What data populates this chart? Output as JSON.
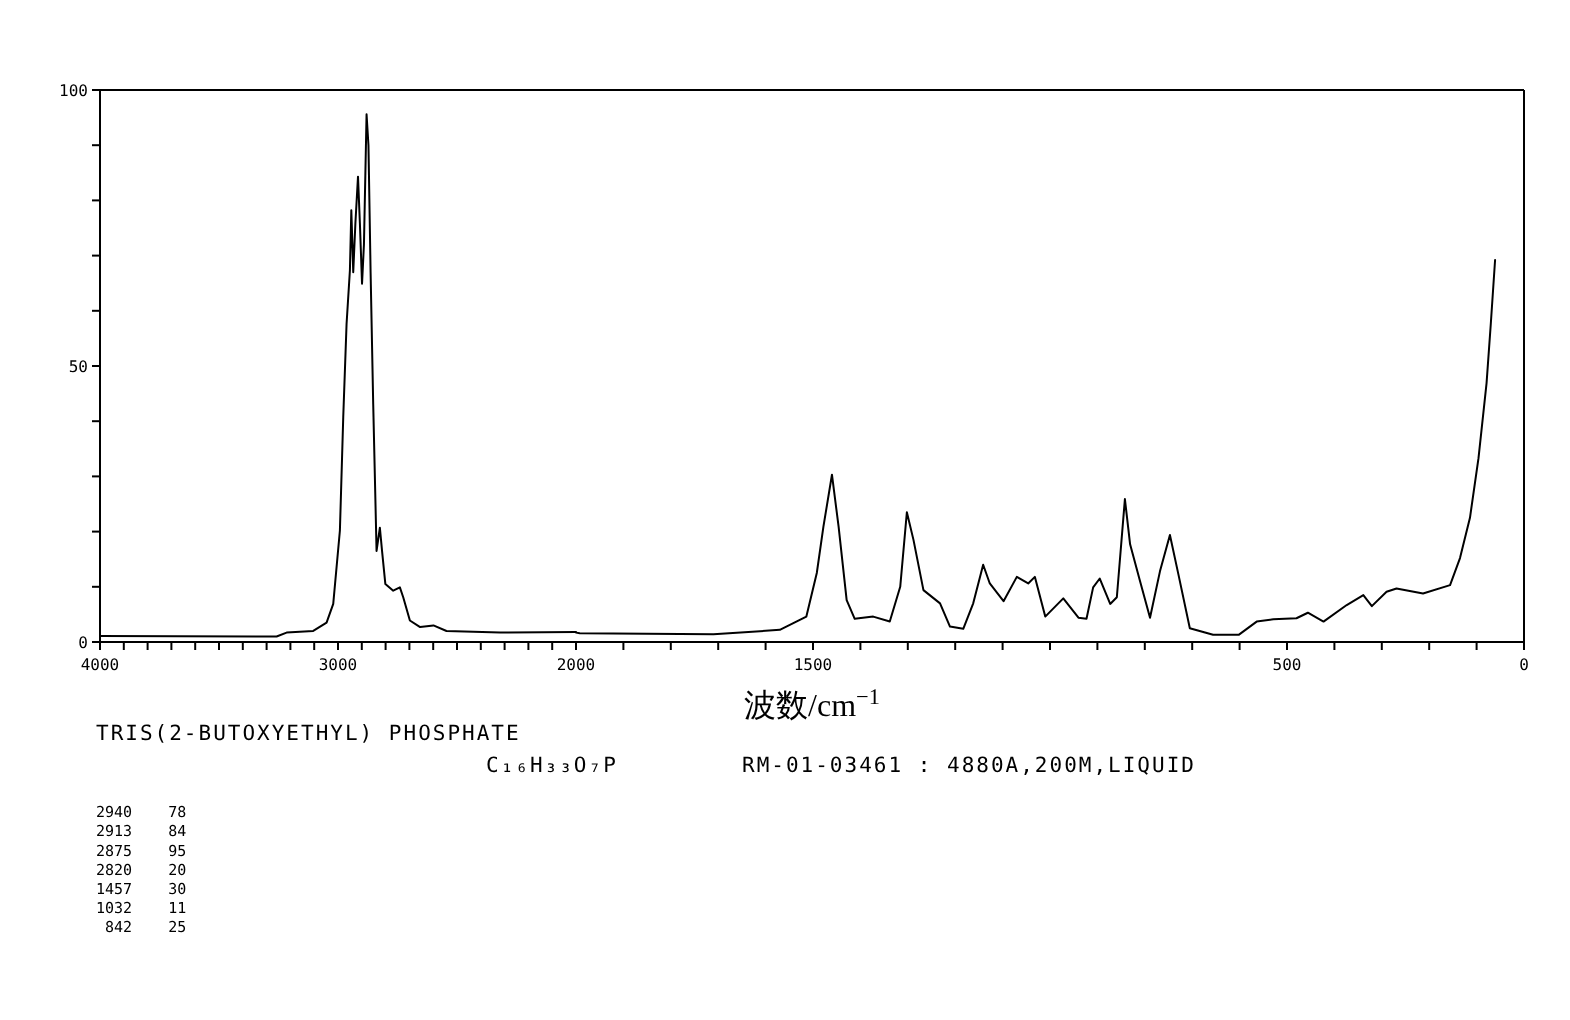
{
  "chart_data": [
    {
      "type": "line",
      "title": "TRIS(2-BUTOXYETHYL) PHOSPHATE",
      "subtitle": "C₁₆H₃₃O₇P",
      "xlabel": "波数/cm$^{−1}$",
      "annotations": [
        "RM-01-03461 : 4880A,200M,LIQUID",
        "2940    78",
        "2913    84",
        "2875    95",
        "2820    20",
        "1457    30",
        "1032    11",
        " 842    25"
      ],
      "xlim": [
        4000,
        2000
      ],
      "ylim": [
        0,
        100
      ],
      "xticks": [
        4000,
        {
          "value": 3900,
          "label": null
        },
        {
          "value": 3800,
          "label": null
        },
        {
          "value": 3700,
          "label": null
        },
        {
          "value": 3600,
          "label": null
        },
        {
          "value": 3500,
          "label": null
        },
        {
          "value": 3400,
          "label": null
        },
        {
          "value": 3300,
          "label": null
        },
        {
          "value": 3200,
          "label": null
        },
        {
          "value": 3100,
          "label": null
        },
        3000,
        {
          "value": 2900,
          "label": null
        },
        {
          "value": 2800,
          "label": null
        },
        {
          "value": 2700,
          "label": null
        },
        {
          "value": 2600,
          "label": null
        },
        {
          "value": 2500,
          "label": null
        },
        {
          "value": 2400,
          "label": null
        },
        {
          "value": 2300,
          "label": null
        },
        {
          "value": 2200,
          "label": null
        },
        {
          "value": 2100,
          "label": null
        },
        2000
      ],
      "yticks": [
        0,
        {
          "value": 10,
          "label": null
        },
        {
          "value": 20,
          "label": null
        },
        {
          "value": 30,
          "label": null
        },
        {
          "value": 40,
          "label": null
        },
        50,
        {
          "value": 60,
          "label": null
        },
        {
          "value": 70,
          "label": null
        },
        {
          "value": 80,
          "label": null
        },
        {
          "value": 90,
          "label": null
        },
        100
      ],
      "series": [
        {
          "color": "#000000",
          "x": [
            4000,
            3258,
            3216,
            3104,
            3048,
            3020,
            2992,
            2978,
            2964,
            2950,
            2944,
            2936,
            2927,
            2916,
            2908,
            2899,
            2891,
            2880,
            2872,
            2863,
            2852,
            2838,
            2824,
            2815,
            2801,
            2768,
            2740,
            2726,
            2698,
            2655,
            2599,
            2544,
            2319,
            2000
          ],
          "values": [
            1.1,
            1.0,
            1.7,
            2.0,
            3.5,
            6.9,
            20.2,
            40.7,
            57.6,
            67.3,
            78.2,
            67,
            75.8,
            84.3,
            75.8,
            64.9,
            72,
            95.6,
            90,
            67,
            43,
            16.5,
            20.7,
            16.5,
            10.5,
            9.3,
            9.9,
            8.1,
            3.9,
            2.7,
            3.0,
            2.0,
            1.7,
            1.8
          ]
        }
      ]
    },
    {
      "type": "line",
      "tick_labels": "x",
      "xlim": [
        2000,
        0
      ],
      "ylim": [
        0,
        100
      ],
      "xticks": [
        {
          "value": 1900,
          "label": null
        },
        {
          "value": 1800,
          "label": null
        },
        {
          "value": 1700,
          "label": null
        },
        {
          "value": 1600,
          "label": null
        },
        1500,
        {
          "value": 1400,
          "label": null
        },
        {
          "value": 1300,
          "label": null
        },
        {
          "value": 1200,
          "label": null
        },
        {
          "value": 1100,
          "label": null
        },
        {
          "value": 1000,
          "label": null
        },
        {
          "value": 900,
          "label": null
        },
        {
          "value": 800,
          "label": null
        },
        {
          "value": 700,
          "label": null
        },
        {
          "value": 600,
          "label": null
        },
        500,
        {
          "value": 400,
          "label": null
        },
        {
          "value": 300,
          "label": null
        },
        {
          "value": 200,
          "label": null
        },
        {
          "value": 100,
          "label": null
        },
        0
      ],
      "series": [
        {
          "color": "#000000",
          "x": [
            2000,
            1992,
            1710,
            1570,
            1514,
            1492,
            1478,
            1460,
            1446,
            1429,
            1412,
            1373,
            1338,
            1316,
            1302,
            1288,
            1267,
            1232,
            1211,
            1183,
            1162,
            1141,
            1127,
            1098,
            1070,
            1046,
            1032,
            1010,
            972,
            940,
            923,
            909,
            895,
            873,
            859,
            842,
            831,
            810,
            789,
            768,
            747,
            729,
            705,
            656,
            602,
            564,
            529,
            480,
            456,
            423,
            374,
            339,
            321,
            290,
            269,
            213,
            156,
            135,
            114,
            96,
            79,
            70,
            61
          ],
          "values": [
            1.7,
            1.6,
            1.4,
            2.2,
            4.6,
            12.5,
            20.9,
            30.3,
            20.9,
            7.6,
            4.2,
            4.6,
            3.7,
            10,
            23.5,
            18.5,
            9.4,
            7,
            2.8,
            2.4,
            7,
            14,
            10.6,
            7.4,
            11.8,
            10.6,
            11.8,
            4.6,
            7.9,
            4.4,
            4.2,
            9.9,
            11.5,
            6.9,
            8.1,
            25.9,
            17.7,
            11,
            4.4,
            12.8,
            19.4,
            12.2,
            2.5,
            1.3,
            1.3,
            3.7,
            4.1,
            4.3,
            5.3,
            3.7,
            6.7,
            8.5,
            6.5,
            9.1,
            9.7,
            8.8,
            10.3,
            15.2,
            22.5,
            33.3,
            46.9,
            57.7,
            69.2
          ]
        }
      ]
    }
  ]
}
